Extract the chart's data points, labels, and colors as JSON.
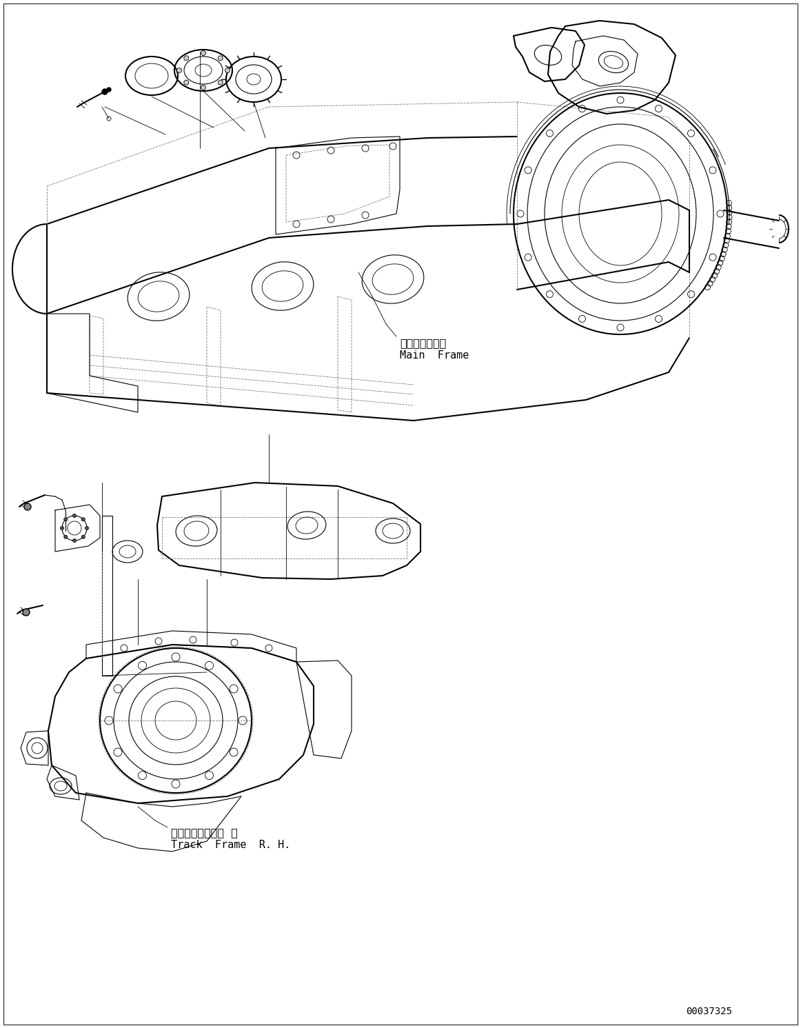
{
  "background_color": "#ffffff",
  "line_color": "#000000",
  "dashed_color": "#777777",
  "text_color": "#000000",
  "fig_width": 11.62,
  "fig_height": 14.91,
  "label_main_frame_jp": "メインフレーム",
  "label_main_frame_en": "Main  Frame",
  "label_track_frame_jp": "トラックフレーム  右",
  "label_track_frame_en": "Track  Frame  R. H.",
  "part_number": "00037325",
  "lw": 1.0,
  "lw_thick": 1.5,
  "lw_thin": 0.6,
  "lw_med": 0.8
}
